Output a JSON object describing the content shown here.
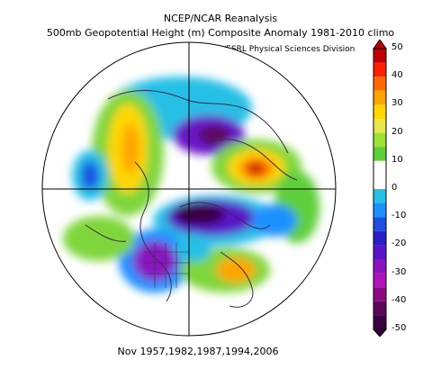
{
  "header": {
    "line1": "NCEP/NCAR Reanalysis",
    "line2": "500mb Geopotential Height (m) Composite Anomaly 1981-2010 climo",
    "source": "NOAA/ESRL Physical Sciences Division"
  },
  "footer": {
    "dates": "Nov 1957,1982,1987,1994,2006"
  },
  "map": {
    "projection": "north polar stereographic",
    "variable": "500mb geopotential height anomaly"
  },
  "colorbar": {
    "ticks": [
      "50",
      "40",
      "30",
      "20",
      "10",
      "0",
      "-10",
      "-20",
      "-30",
      "-40",
      "-50"
    ],
    "colors": [
      "#c00000",
      "#ff2000",
      "#ff6a00",
      "#ffa500",
      "#ffd700",
      "#e8e84a",
      "#9ee233",
      "#5fcf3a",
      "#ffffff",
      "#ffffff",
      "#28c0e6",
      "#1e90ff",
      "#1e4fe0",
      "#2a1ec8",
      "#5a14c8",
      "#8a14c0",
      "#b014b8",
      "#8c0a82",
      "#5a0858",
      "#3a0040"
    ]
  }
}
